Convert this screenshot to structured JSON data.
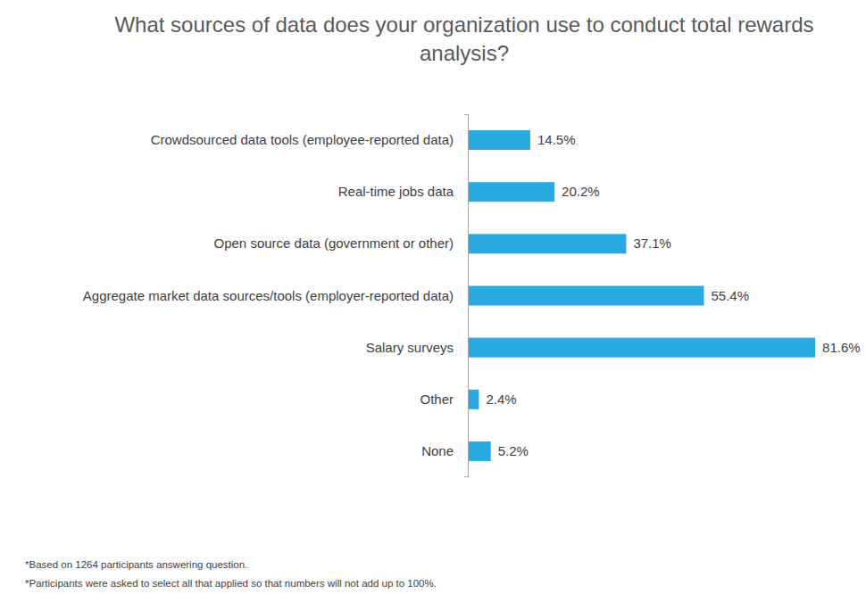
{
  "chart_data": {
    "type": "bar",
    "orientation": "horizontal",
    "title": "What sources of data does your organization use to conduct total rewards analysis?",
    "categories": [
      "Crowdsourced data tools (employee-reported data)",
      "Real-time jobs data",
      "Open source data (government or other)",
      "Aggregate market data sources/tools (employer-reported data)",
      "Salary surveys",
      "Other",
      "None"
    ],
    "values": [
      14.5,
      20.2,
      37.1,
      55.4,
      81.6,
      2.4,
      5.2
    ],
    "value_labels": [
      "14.5%",
      "20.2%",
      "37.1%",
      "55.4%",
      "81.6%",
      "2.4%",
      "5.2%"
    ],
    "color": "#29abe2",
    "xlim": [
      0,
      90
    ],
    "grid": false,
    "data_labels": true,
    "tick_labels": "y",
    "annotations": [
      "*Based on 1264 participants answering question.",
      "*Participants were asked to select all that applied so that numbers will not add up to 100%."
    ]
  }
}
